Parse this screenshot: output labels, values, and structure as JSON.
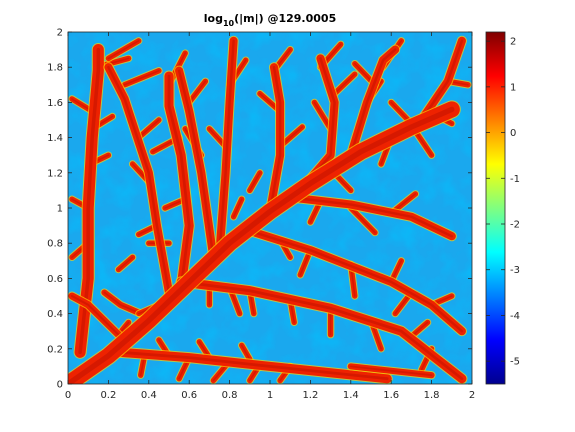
{
  "chart_data": {
    "type": "heatmap",
    "title": {
      "prefix": "log",
      "subscript": "10",
      "suffix": "(|m|) @129.0005"
    },
    "xlabel": "",
    "ylabel": "",
    "xlim": [
      0,
      2
    ],
    "ylim": [
      0,
      2
    ],
    "x_ticks": [
      "0",
      "0.2",
      "0.4",
      "0.6",
      "0.8",
      "1",
      "1.2",
      "1.4",
      "1.6",
      "1.8",
      "2"
    ],
    "y_ticks": [
      "0",
      "0.2",
      "0.4",
      "0.6",
      "0.8",
      "1",
      "1.2",
      "1.4",
      "1.6",
      "1.8",
      "2"
    ],
    "colorbar": {
      "limits": [
        -5.5,
        2.2
      ],
      "ticks": [
        "2",
        "1",
        "0",
        "-1",
        "-2",
        "-3",
        "-4",
        "-5"
      ],
      "colormap": [
        "#00008f",
        "#0000ff",
        "#0080ff",
        "#00ffff",
        "#80ff80",
        "#ffff00",
        "#ff8000",
        "#ff0000",
        "#800000"
      ]
    },
    "background_level": -3,
    "channel_level": 2,
    "grid": false,
    "main_trunk": [
      [
        0.0,
        0.0
      ],
      [
        0.2,
        0.16
      ],
      [
        0.4,
        0.36
      ],
      [
        0.6,
        0.58
      ],
      [
        0.8,
        0.8
      ],
      [
        1.0,
        0.98
      ],
      [
        1.2,
        1.14
      ],
      [
        1.45,
        1.32
      ],
      [
        1.7,
        1.46
      ],
      [
        1.9,
        1.56
      ]
    ],
    "branches": [
      {
        "points": [
          [
            0.06,
            0.18
          ],
          [
            0.1,
            0.6
          ],
          [
            0.1,
            1.0
          ],
          [
            0.12,
            1.4
          ],
          [
            0.15,
            1.78
          ],
          [
            0.15,
            1.9
          ]
        ],
        "width": 0.05
      },
      {
        "points": [
          [
            0.26,
            0.18
          ],
          [
            0.6,
            0.15
          ],
          [
            1.0,
            0.1
          ],
          [
            1.58,
            0.03
          ]
        ],
        "width": 0.04
      },
      {
        "points": [
          [
            0.56,
            0.55
          ],
          [
            0.6,
            0.9
          ],
          [
            0.56,
            1.3
          ],
          [
            0.5,
            1.58
          ],
          [
            0.5,
            1.75
          ]
        ],
        "width": 0.04
      },
      {
        "points": [
          [
            0.5,
            0.52
          ],
          [
            0.44,
            0.9
          ],
          [
            0.4,
            1.2
          ],
          [
            0.28,
            1.62
          ],
          [
            0.2,
            1.8
          ]
        ],
        "width": 0.035
      },
      {
        "points": [
          [
            0.75,
            0.75
          ],
          [
            0.78,
            1.2
          ],
          [
            0.8,
            1.6
          ],
          [
            0.82,
            1.95
          ]
        ],
        "width": 0.035
      },
      {
        "points": [
          [
            0.72,
            0.72
          ],
          [
            0.66,
            1.2
          ],
          [
            0.6,
            1.55
          ],
          [
            0.55,
            1.78
          ]
        ],
        "width": 0.035
      },
      {
        "points": [
          [
            0.56,
            0.58
          ],
          [
            0.9,
            0.53
          ],
          [
            1.3,
            0.43
          ],
          [
            1.65,
            0.3
          ],
          [
            1.95,
            0.03
          ]
        ],
        "width": 0.04
      },
      {
        "points": [
          [
            0.9,
            0.87
          ],
          [
            1.2,
            0.76
          ],
          [
            1.6,
            0.58
          ],
          [
            1.8,
            0.45
          ],
          [
            1.95,
            0.3
          ]
        ],
        "width": 0.035
      },
      {
        "points": [
          [
            1.0,
            0.98
          ],
          [
            1.05,
            1.3
          ],
          [
            1.05,
            1.6
          ],
          [
            1.02,
            1.8
          ]
        ],
        "width": 0.035
      },
      {
        "points": [
          [
            1.15,
            1.1
          ],
          [
            1.3,
            1.3
          ],
          [
            1.32,
            1.6
          ],
          [
            1.25,
            1.85
          ]
        ],
        "width": 0.035
      },
      {
        "points": [
          [
            1.1,
            1.06
          ],
          [
            1.4,
            1.02
          ],
          [
            1.7,
            0.95
          ],
          [
            1.9,
            0.84
          ]
        ],
        "width": 0.035
      },
      {
        "points": [
          [
            1.4,
            1.3
          ],
          [
            1.48,
            1.6
          ],
          [
            1.56,
            1.84
          ],
          [
            1.62,
            1.9
          ]
        ],
        "width": 0.035
      },
      {
        "points": [
          [
            1.5,
            1.36
          ],
          [
            1.75,
            1.5
          ],
          [
            1.88,
            1.72
          ],
          [
            1.95,
            1.95
          ]
        ],
        "width": 0.035
      },
      {
        "points": [
          [
            0.25,
            0.28
          ],
          [
            0.1,
            0.45
          ],
          [
            0.02,
            0.5
          ]
        ],
        "width": 0.03
      },
      {
        "points": [
          [
            0.4,
            0.38
          ],
          [
            0.26,
            0.45
          ],
          [
            0.18,
            0.52
          ]
        ],
        "width": 0.025
      },
      {
        "points": [
          [
            1.4,
            0.1
          ],
          [
            1.8,
            0.05
          ]
        ],
        "width": 0.025
      },
      {
        "points": [
          [
            0.45,
            0.45
          ],
          [
            0.35,
            0.4
          ]
        ],
        "width": 0.02
      }
    ],
    "twigs": [
      [
        [
          0.1,
          0.8
        ],
        [
          0.02,
          0.72
        ]
      ],
      [
        [
          0.1,
          1.0
        ],
        [
          0.02,
          1.05
        ]
      ],
      [
        [
          0.11,
          1.25
        ],
        [
          0.2,
          1.3
        ]
      ],
      [
        [
          0.12,
          1.55
        ],
        [
          0.02,
          1.62
        ]
      ],
      [
        [
          0.14,
          1.8
        ],
        [
          0.3,
          1.85
        ]
      ],
      [
        [
          0.12,
          1.45
        ],
        [
          0.22,
          1.52
        ]
      ],
      [
        [
          0.4,
          1.15
        ],
        [
          0.32,
          1.25
        ]
      ],
      [
        [
          0.44,
          0.9
        ],
        [
          0.35,
          0.85
        ]
      ],
      [
        [
          0.35,
          1.4
        ],
        [
          0.45,
          1.5
        ]
      ],
      [
        [
          0.55,
          1.4
        ],
        [
          0.42,
          1.32
        ]
      ],
      [
        [
          0.58,
          1.05
        ],
        [
          0.48,
          1.0
        ]
      ],
      [
        [
          0.5,
          1.7
        ],
        [
          0.58,
          1.88
        ]
      ],
      [
        [
          0.28,
          1.7
        ],
        [
          0.45,
          1.78
        ]
      ],
      [
        [
          0.2,
          1.85
        ],
        [
          0.35,
          1.95
        ]
      ],
      [
        [
          0.78,
          1.35
        ],
        [
          0.7,
          1.45
        ]
      ],
      [
        [
          0.8,
          1.7
        ],
        [
          0.88,
          1.84
        ]
      ],
      [
        [
          0.66,
          1.3
        ],
        [
          0.58,
          1.45
        ]
      ],
      [
        [
          0.6,
          1.6
        ],
        [
          0.68,
          1.72
        ]
      ],
      [
        [
          1.05,
          1.35
        ],
        [
          1.16,
          1.46
        ]
      ],
      [
        [
          1.05,
          1.55
        ],
        [
          0.95,
          1.65
        ]
      ],
      [
        [
          1.02,
          1.78
        ],
        [
          1.1,
          1.9
        ]
      ],
      [
        [
          1.3,
          1.45
        ],
        [
          1.22,
          1.6
        ]
      ],
      [
        [
          1.32,
          1.65
        ],
        [
          1.42,
          1.76
        ]
      ],
      [
        [
          1.25,
          1.8
        ],
        [
          1.35,
          1.93
        ]
      ],
      [
        [
          1.48,
          1.6
        ],
        [
          1.55,
          1.72
        ]
      ],
      [
        [
          1.56,
          1.8
        ],
        [
          1.65,
          1.95
        ]
      ],
      [
        [
          1.52,
          1.7
        ],
        [
          1.42,
          1.82
        ]
      ],
      [
        [
          1.78,
          1.55
        ],
        [
          1.9,
          1.48
        ]
      ],
      [
        [
          1.88,
          1.72
        ],
        [
          1.98,
          1.7
        ]
      ],
      [
        [
          1.7,
          1.48
        ],
        [
          1.6,
          1.6
        ]
      ],
      [
        [
          1.6,
          1.4
        ],
        [
          1.55,
          1.25
        ]
      ],
      [
        [
          1.7,
          1.47
        ],
        [
          1.8,
          1.3
        ]
      ],
      [
        [
          1.3,
          1.22
        ],
        [
          1.4,
          1.1
        ]
      ],
      [
        [
          1.4,
          1.0
        ],
        [
          1.52,
          0.86
        ]
      ],
      [
        [
          1.6,
          0.97
        ],
        [
          1.72,
          1.08
        ]
      ],
      [
        [
          1.25,
          1.04
        ],
        [
          1.2,
          0.92
        ]
      ],
      [
        [
          1.2,
          0.76
        ],
        [
          1.15,
          0.62
        ]
      ],
      [
        [
          1.4,
          0.68
        ],
        [
          1.42,
          0.5
        ]
      ],
      [
        [
          1.6,
          0.58
        ],
        [
          1.65,
          0.7
        ]
      ],
      [
        [
          1.7,
          0.52
        ],
        [
          1.62,
          0.4
        ]
      ],
      [
        [
          1.8,
          0.45
        ],
        [
          1.9,
          0.5
        ]
      ],
      [
        [
          1.05,
          0.82
        ],
        [
          1.1,
          0.72
        ]
      ],
      [
        [
          0.9,
          0.53
        ],
        [
          0.92,
          0.4
        ]
      ],
      [
        [
          1.1,
          0.48
        ],
        [
          1.12,
          0.35
        ]
      ],
      [
        [
          1.3,
          0.43
        ],
        [
          1.3,
          0.28
        ]
      ],
      [
        [
          1.5,
          0.36
        ],
        [
          1.55,
          0.2
        ]
      ],
      [
        [
          1.7,
          0.27
        ],
        [
          1.78,
          0.35
        ]
      ],
      [
        [
          1.8,
          0.2
        ],
        [
          1.75,
          0.08
        ]
      ],
      [
        [
          0.7,
          0.57
        ],
        [
          0.7,
          0.45
        ]
      ],
      [
        [
          0.8,
          0.55
        ],
        [
          0.85,
          0.4
        ]
      ],
      [
        [
          0.6,
          0.15
        ],
        [
          0.55,
          0.03
        ]
      ],
      [
        [
          0.8,
          0.13
        ],
        [
          0.72,
          0.02
        ]
      ],
      [
        [
          0.95,
          0.11
        ],
        [
          0.9,
          0.02
        ]
      ],
      [
        [
          1.1,
          0.1
        ],
        [
          1.05,
          0.02
        ]
      ],
      [
        [
          0.5,
          0.16
        ],
        [
          0.45,
          0.25
        ]
      ],
      [
        [
          0.7,
          0.15
        ],
        [
          0.65,
          0.24
        ]
      ],
      [
        [
          0.9,
          0.14
        ],
        [
          0.86,
          0.22
        ]
      ],
      [
        [
          0.38,
          0.17
        ],
        [
          0.36,
          0.05
        ]
      ],
      [
        [
          0.3,
          0.35
        ],
        [
          0.25,
          0.28
        ]
      ],
      [
        [
          0.4,
          0.8
        ],
        [
          0.5,
          0.8
        ]
      ],
      [
        [
          0.32,
          0.72
        ],
        [
          0.25,
          0.65
        ]
      ],
      [
        [
          0.82,
          0.95
        ],
        [
          0.86,
          1.05
        ]
      ],
      [
        [
          0.9,
          1.1
        ],
        [
          0.95,
          1.2
        ]
      ]
    ]
  }
}
